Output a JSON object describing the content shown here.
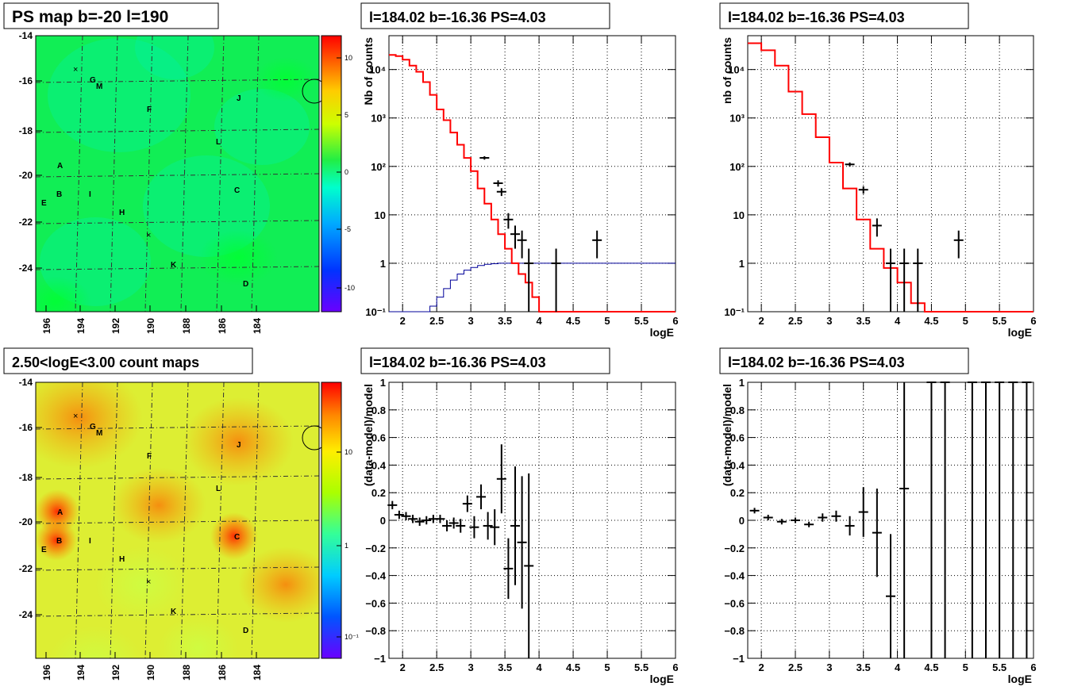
{
  "colors": {
    "background": "#ffffff",
    "axis": "#000000",
    "grid": "#000000",
    "model_line": "#ff0000",
    "exposure_line": "#000099",
    "data_marker": "#000000"
  },
  "map_panels": [
    {
      "title": "PS map b=-20 l=190",
      "xticks": [
        "196",
        "194",
        "192",
        "190",
        "188",
        "186",
        "184"
      ],
      "yticks": [
        "-14",
        "-16",
        "-18",
        "-20",
        "-22",
        "-24"
      ],
      "colorbar_ticks": [
        "10",
        "5",
        "0",
        "-5",
        "-10"
      ],
      "colorbar_scale": "linear",
      "palette": "psmap",
      "labels": [
        "A",
        "B",
        "C",
        "D",
        "E",
        "F",
        "G",
        "H",
        "I",
        "J",
        "K",
        "L",
        "M"
      ]
    },
    {
      "title": "2.50<logE<3.00 count maps",
      "xticks": [
        "196",
        "194",
        "192",
        "190",
        "188",
        "186",
        "184"
      ],
      "yticks": [
        "-14",
        "-16",
        "-18",
        "-20",
        "-22",
        "-24"
      ],
      "colorbar_ticks": [
        "10",
        "1",
        "10⁻¹"
      ],
      "colorbar_scale": "log",
      "palette": "counts",
      "labels": [
        "A",
        "B",
        "C",
        "D",
        "E",
        "F",
        "G",
        "H",
        "I",
        "J",
        "K",
        "L",
        "M"
      ]
    }
  ],
  "chart_data": [
    {
      "type": "step",
      "title": "l=184.02 b=-16.36 PS=4.03",
      "xlabel": "logE",
      "ylabel": "Nb of counts",
      "xlim": [
        1.8,
        6
      ],
      "ylim": [
        0.1,
        50000
      ],
      "yscale": "log",
      "grid": true,
      "xticks": [
        "2",
        "2.5",
        "3",
        "3.5",
        "4",
        "4.5",
        "5",
        "5.5",
        "6"
      ],
      "yticks": [
        "10⁻¹",
        "1",
        "10",
        "10²",
        "10³",
        "10⁴"
      ],
      "model_step": {
        "x": [
          1.8,
          1.9,
          2.0,
          2.1,
          2.2,
          2.3,
          2.4,
          2.5,
          2.6,
          2.7,
          2.8,
          2.9,
          3.0,
          3.1,
          3.2,
          3.3,
          3.4,
          3.5,
          3.6,
          3.7,
          3.8,
          3.9,
          4.0,
          4.1,
          4.2,
          4.3,
          6.0
        ],
        "y": [
          20000,
          19000,
          16000,
          12000,
          9000,
          5500,
          3000,
          1500,
          900,
          500,
          280,
          150,
          80,
          35,
          17,
          8,
          4,
          2,
          1,
          0.6,
          0.4,
          0.2,
          0.1,
          0.1,
          0.1,
          0.1
        ]
      },
      "exposure_step": {
        "x": [
          1.8,
          2.3,
          2.4,
          2.5,
          2.6,
          2.7,
          2.8,
          2.9,
          3.0,
          3.1,
          3.2,
          3.3,
          3.4,
          3.5,
          3.6,
          6.0
        ],
        "y": [
          0.1,
          0.1,
          0.13,
          0.2,
          0.3,
          0.45,
          0.6,
          0.72,
          0.82,
          0.9,
          0.95,
          0.98,
          1.0,
          1.0,
          1.0
        ]
      },
      "points": [
        {
          "x": 3.2,
          "y": 150
        },
        {
          "x": 3.4,
          "y": 45
        },
        {
          "x": 3.45,
          "y": 30
        },
        {
          "x": 3.55,
          "y": 8
        },
        {
          "x": 3.65,
          "y": 4
        },
        {
          "x": 3.75,
          "y": 3
        },
        {
          "x": 3.85,
          "y": 1
        },
        {
          "x": 4.25,
          "y": 1
        },
        {
          "x": 4.85,
          "y": 3
        }
      ]
    },
    {
      "type": "step",
      "title": "l=184.02 b=-16.36 PS=4.03",
      "xlabel": "logE",
      "ylabel": "nb of counts",
      "xlim": [
        1.8,
        6
      ],
      "ylim": [
        0.1,
        50000
      ],
      "yscale": "log",
      "grid": true,
      "xticks": [
        "2",
        "2.5",
        "3",
        "3.5",
        "4",
        "4.5",
        "5",
        "5.5",
        "6"
      ],
      "yticks": [
        "10⁻¹",
        "1",
        "10",
        "10²",
        "10³",
        "10⁴"
      ],
      "model_step": {
        "x": [
          1.8,
          2.0,
          2.2,
          2.4,
          2.6,
          2.8,
          3.0,
          3.2,
          3.4,
          3.6,
          3.8,
          4.0,
          4.2,
          4.4,
          4.6,
          6.0
        ],
        "y": [
          35000,
          25000,
          12000,
          3500,
          1200,
          400,
          120,
          35,
          8,
          2,
          0.8,
          0.4,
          0.15,
          0.1,
          0.1
        ]
      },
      "points": [
        {
          "x": 3.3,
          "y": 110
        },
        {
          "x": 3.5,
          "y": 33
        },
        {
          "x": 3.7,
          "y": 6
        },
        {
          "x": 3.9,
          "y": 1
        },
        {
          "x": 4.1,
          "y": 1
        },
        {
          "x": 4.3,
          "y": 1
        },
        {
          "x": 4.9,
          "y": 3
        }
      ]
    },
    {
      "type": "scatter",
      "title": "l=184.02 b=-16.36 PS=4.03",
      "xlabel": "logE",
      "ylabel": "(data-model)/model",
      "xlim": [
        1.8,
        6
      ],
      "ylim": [
        -1,
        1
      ],
      "yscale": "linear",
      "grid": true,
      "xticks": [
        "2",
        "2.5",
        "3",
        "3.5",
        "4",
        "4.5",
        "5",
        "5.5",
        "6"
      ],
      "yticks": [
        "−1",
        "−0.8",
        "−0.6",
        "−0.4",
        "−0.2",
        "0",
        "0.2",
        "0.4",
        "0.6",
        "0.8",
        "1"
      ],
      "points": [
        {
          "x": 1.85,
          "y": 0.11,
          "err": 0.03
        },
        {
          "x": 1.95,
          "y": 0.04,
          "err": 0.03
        },
        {
          "x": 2.05,
          "y": 0.03,
          "err": 0.03
        },
        {
          "x": 2.15,
          "y": 0.01,
          "err": 0.03
        },
        {
          "x": 2.25,
          "y": -0.01,
          "err": 0.03
        },
        {
          "x": 2.35,
          "y": 0.0,
          "err": 0.03
        },
        {
          "x": 2.45,
          "y": 0.01,
          "err": 0.03
        },
        {
          "x": 2.55,
          "y": 0.01,
          "err": 0.03
        },
        {
          "x": 2.65,
          "y": -0.04,
          "err": 0.04
        },
        {
          "x": 2.75,
          "y": -0.02,
          "err": 0.04
        },
        {
          "x": 2.85,
          "y": -0.04,
          "err": 0.05
        },
        {
          "x": 2.95,
          "y": 0.12,
          "err": 0.06
        },
        {
          "x": 3.05,
          "y": -0.05,
          "err": 0.08
        },
        {
          "x": 3.15,
          "y": 0.17,
          "err": 0.09
        },
        {
          "x": 3.25,
          "y": -0.04,
          "err": 0.1
        },
        {
          "x": 3.35,
          "y": -0.05,
          "err": 0.13
        },
        {
          "x": 3.45,
          "y": 0.3,
          "err": 0.25
        },
        {
          "x": 3.55,
          "y": -0.35,
          "err": 0.22
        },
        {
          "x": 3.65,
          "y": -0.04,
          "err": 0.43
        },
        {
          "x": 3.75,
          "y": -0.16,
          "err": 0.48
        },
        {
          "x": 3.85,
          "y": -0.33,
          "err": 0.67
        }
      ]
    },
    {
      "type": "scatter",
      "title": "l=184.02 b=-16.36 PS=4.03",
      "xlabel": "logE",
      "ylabel": "(data-model)/model",
      "xlim": [
        1.8,
        6
      ],
      "ylim": [
        -1,
        1
      ],
      "yscale": "linear",
      "grid": true,
      "xticks": [
        "2",
        "2.5",
        "3",
        "3.5",
        "4",
        "4.5",
        "5",
        "5.5",
        "6"
      ],
      "yticks": [
        "−1",
        "−0.8",
        "−0.6",
        "−0.4",
        "−0.2",
        "0",
        "0.2",
        "0.4",
        "0.6",
        "0.8",
        "1"
      ],
      "points": [
        {
          "x": 1.9,
          "y": 0.07,
          "err": 0.02
        },
        {
          "x": 2.1,
          "y": 0.02,
          "err": 0.02
        },
        {
          "x": 2.3,
          "y": -0.01,
          "err": 0.02
        },
        {
          "x": 2.5,
          "y": 0.0,
          "err": 0.02
        },
        {
          "x": 2.7,
          "y": -0.03,
          "err": 0.02
        },
        {
          "x": 2.9,
          "y": 0.02,
          "err": 0.03
        },
        {
          "x": 3.1,
          "y": 0.03,
          "err": 0.04
        },
        {
          "x": 3.3,
          "y": -0.04,
          "err": 0.07
        },
        {
          "x": 3.5,
          "y": 0.06,
          "err": 0.18
        },
        {
          "x": 3.7,
          "y": -0.09,
          "err": 0.32
        },
        {
          "x": 3.9,
          "y": -0.55,
          "err": 0.45
        },
        {
          "x": 4.1,
          "y": 0.23,
          "err": 1.3
        },
        {
          "x": 4.5,
          "y": 1.0,
          "err": 2.0
        },
        {
          "x": 4.7,
          "y": 1.0,
          "err": 2.0
        },
        {
          "x": 5.1,
          "y": 1.0,
          "err": 2.0
        },
        {
          "x": 5.3,
          "y": 1.0,
          "err": 2.0
        },
        {
          "x": 5.5,
          "y": 1.0,
          "err": 2.0
        },
        {
          "x": 5.7,
          "y": 1.0,
          "err": 2.0
        },
        {
          "x": 5.9,
          "y": 1.0,
          "err": 2.0
        }
      ]
    }
  ]
}
